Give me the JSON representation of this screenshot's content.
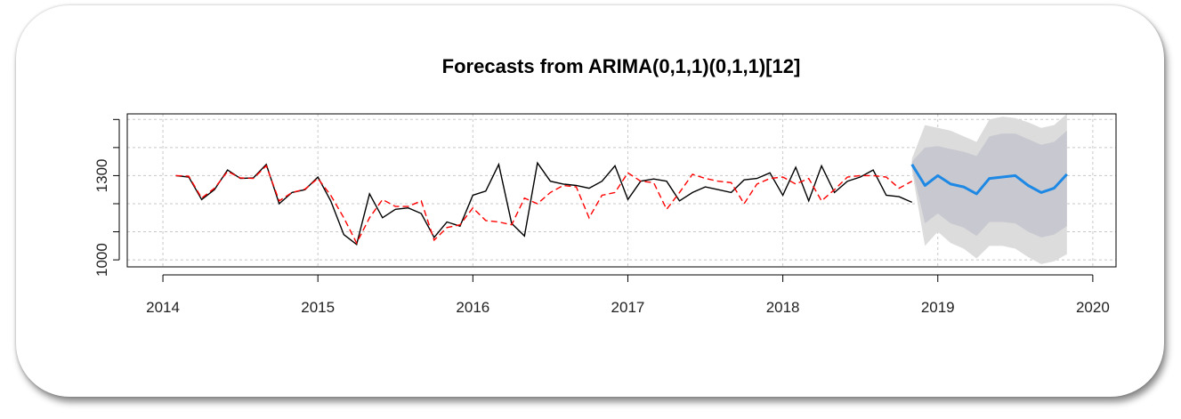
{
  "chart_data": {
    "type": "line",
    "title": "Forecasts from ARIMA(0,1,1)(0,1,1)[12]",
    "xlabel": "",
    "ylabel": "",
    "xlim": [
      2013.77,
      2020.15
    ],
    "ylim": [
      975,
      1520
    ],
    "x_ticks": [
      {
        "value": 2014,
        "label": "2014"
      },
      {
        "value": 2015,
        "label": "2015"
      },
      {
        "value": 2016,
        "label": "2016"
      },
      {
        "value": 2017,
        "label": "2017"
      },
      {
        "value": 2018,
        "label": "2018"
      },
      {
        "value": 2019,
        "label": "2019"
      },
      {
        "value": 2020,
        "label": "2020"
      }
    ],
    "y_ticks": [
      {
        "value": 1000,
        "label": "1000"
      },
      {
        "value": 1300,
        "label": "1300"
      }
    ],
    "grid": true,
    "colors": {
      "actual": "#000000",
      "fitted": "#ff0000",
      "forecast": "#1e88e5",
      "pi95": "#dcdcdc",
      "pi80": "#c8c9d0",
      "grid": "#c8c8c8"
    },
    "series": [
      {
        "key": "actual",
        "x": [
          2014.083,
          2014.167,
          2014.25,
          2014.333,
          2014.417,
          2014.5,
          2014.583,
          2014.667,
          2014.75,
          2014.833,
          2014.917,
          2015.0,
          2015.083,
          2015.167,
          2015.25,
          2015.333,
          2015.417,
          2015.5,
          2015.583,
          2015.667,
          2015.75,
          2015.833,
          2015.917,
          2016.0,
          2016.083,
          2016.167,
          2016.25,
          2016.333,
          2016.417,
          2016.5,
          2016.583,
          2016.667,
          2016.75,
          2016.833,
          2016.917,
          2017.0,
          2017.083,
          2017.167,
          2017.25,
          2017.333,
          2017.417,
          2017.5,
          2017.583,
          2017.667,
          2017.75,
          2017.833,
          2017.917,
          2018.0,
          2018.083,
          2018.167,
          2018.25,
          2018.333,
          2018.417,
          2018.5,
          2018.583,
          2018.667,
          2018.75,
          2018.833
        ],
        "y": [
          1300,
          1295,
          1215,
          1250,
          1320,
          1290,
          1292,
          1340,
          1200,
          1240,
          1250,
          1295,
          1210,
          1090,
          1055,
          1235,
          1150,
          1180,
          1185,
          1165,
          1080,
          1135,
          1120,
          1230,
          1245,
          1340,
          1130,
          1085,
          1345,
          1280,
          1270,
          1265,
          1255,
          1280,
          1335,
          1215,
          1280,
          1288,
          1280,
          1210,
          1240,
          1260,
          1250,
          1240,
          1285,
          1290,
          1310,
          1230,
          1330,
          1210,
          1335,
          1240,
          1280,
          1295,
          1320,
          1230,
          1225,
          1205
        ]
      },
      {
        "key": "fitted",
        "x": [
          2014.083,
          2014.167,
          2014.25,
          2014.333,
          2014.417,
          2014.5,
          2014.583,
          2014.667,
          2014.75,
          2014.833,
          2014.917,
          2015.0,
          2015.083,
          2015.167,
          2015.25,
          2015.333,
          2015.417,
          2015.5,
          2015.583,
          2015.667,
          2015.75,
          2015.833,
          2015.917,
          2016.0,
          2016.083,
          2016.167,
          2016.25,
          2016.333,
          2016.417,
          2016.5,
          2016.583,
          2016.667,
          2016.75,
          2016.833,
          2016.917,
          2017.0,
          2017.083,
          2017.167,
          2017.25,
          2017.333,
          2017.417,
          2017.5,
          2017.583,
          2017.667,
          2017.75,
          2017.833,
          2017.917,
          2018.0,
          2018.083,
          2018.167,
          2018.25,
          2018.333,
          2018.417,
          2018.5,
          2018.583,
          2018.667,
          2018.75,
          2018.833
        ],
        "y": [
          1300,
          1298,
          1220,
          1255,
          1315,
          1292,
          1290,
          1335,
          1210,
          1240,
          1252,
          1290,
          1230,
          1150,
          1060,
          1150,
          1215,
          1190,
          1190,
          1210,
          1070,
          1115,
          1125,
          1185,
          1140,
          1135,
          1125,
          1220,
          1200,
          1240,
          1265,
          1260,
          1150,
          1230,
          1240,
          1310,
          1280,
          1275,
          1180,
          1240,
          1305,
          1290,
          1280,
          1275,
          1200,
          1270,
          1290,
          1295,
          1270,
          1290,
          1210,
          1250,
          1295,
          1300,
          1300,
          1295,
          1255,
          1280
        ]
      },
      {
        "key": "forecast",
        "x": [
          2018.833,
          2018.917,
          2019.0,
          2019.083,
          2019.167,
          2019.25,
          2019.333,
          2019.417,
          2019.5,
          2019.583,
          2019.667,
          2019.75,
          2019.833
        ],
        "y": [
          1340,
          1265,
          1300,
          1270,
          1260,
          1235,
          1290,
          1295,
          1300,
          1265,
          1240,
          1255,
          1305
        ]
      }
    ],
    "interval_95": {
      "x": [
        2018.833,
        2018.917,
        2019.0,
        2019.083,
        2019.167,
        2019.25,
        2019.333,
        2019.417,
        2019.5,
        2019.583,
        2019.667,
        2019.75,
        2019.833
      ],
      "lower": [
        1320,
        1050,
        1100,
        1060,
        1040,
        1005,
        1050,
        1050,
        1040,
        1010,
        985,
        995,
        1020
      ],
      "upper": [
        1360,
        1480,
        1470,
        1460,
        1440,
        1420,
        1500,
        1510,
        1505,
        1490,
        1470,
        1480,
        1520
      ]
    },
    "interval_80": {
      "x": [
        2018.833,
        2018.917,
        2019.0,
        2019.083,
        2019.167,
        2019.25,
        2019.333,
        2019.417,
        2019.5,
        2019.583,
        2019.667,
        2019.75,
        2019.833
      ],
      "lower": [
        1330,
        1130,
        1165,
        1130,
        1115,
        1085,
        1135,
        1135,
        1130,
        1100,
        1080,
        1090,
        1120
      ],
      "upper": [
        1350,
        1400,
        1405,
        1395,
        1385,
        1370,
        1440,
        1450,
        1450,
        1430,
        1410,
        1420,
        1460
      ]
    }
  }
}
